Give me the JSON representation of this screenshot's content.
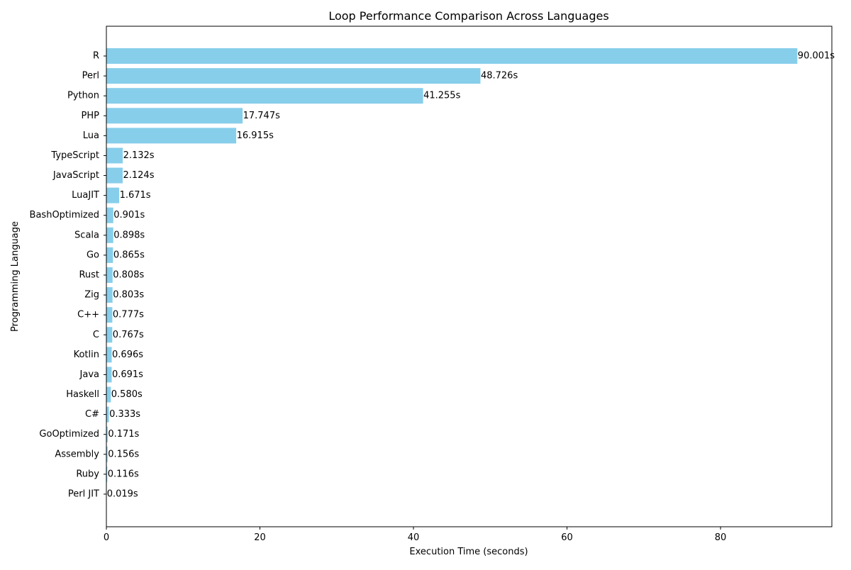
{
  "chart_data": {
    "type": "bar",
    "orientation": "horizontal",
    "title": "Loop Performance Comparison Across Languages",
    "xlabel": "Execution Time (seconds)",
    "ylabel": "Programming Language",
    "xlim": [
      0,
      94.5
    ],
    "xticks": [
      0,
      20,
      40,
      60,
      80
    ],
    "grid": false,
    "bar_color": "#87ceeb",
    "value_suffix": "s",
    "value_decimals": 3,
    "categories": [
      "R",
      "Perl",
      "Python",
      "PHP",
      "Lua",
      "TypeScript",
      "JavaScript",
      "LuaJIT",
      "BashOptimized",
      "Scala",
      "Go",
      "Rust",
      "Zig",
      "C++",
      "C",
      "Kotlin",
      "Java",
      "Haskell",
      "C#",
      "GoOptimized",
      "Assembly",
      "Ruby",
      "Perl JIT"
    ],
    "values": [
      90.001,
      48.726,
      41.255,
      17.747,
      16.915,
      2.132,
      2.124,
      1.671,
      0.901,
      0.898,
      0.865,
      0.808,
      0.803,
      0.777,
      0.767,
      0.696,
      0.691,
      0.58,
      0.333,
      0.171,
      0.156,
      0.116,
      0.019
    ]
  }
}
